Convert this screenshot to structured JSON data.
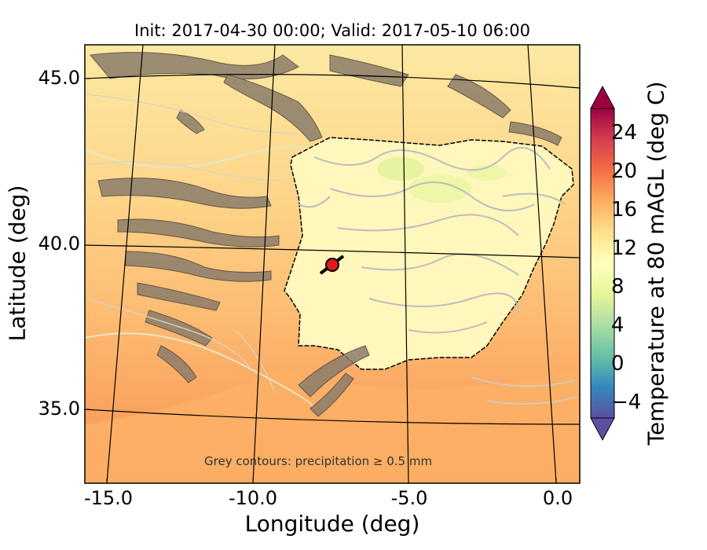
{
  "title": "Init: 2017-04-30 00:00; Valid: 2017-05-10 06:00",
  "xlabel": "Longitude (deg)",
  "ylabel": "Latitude (deg)",
  "x_ticks": [
    "-15.0",
    "-10.0",
    "-5.0",
    "0.0"
  ],
  "y_ticks": [
    "45.0",
    "40.0",
    "35.0"
  ],
  "colorbar": {
    "label": "Temperature at 80 mAGL (deg C)",
    "ticks": [
      "24",
      "20",
      "16",
      "12",
      "8",
      "4",
      "0",
      "−4"
    ],
    "range": [
      -7,
      28
    ]
  },
  "annotation": "Grey contours: precipitation ≥ 0.5 mm",
  "marker": {
    "name": "red-circle-location-marker",
    "lon": -7.6,
    "lat": 39.3,
    "color": "#e0191b"
  },
  "colors": {
    "ocean_light": "#fde9a2",
    "ocean_mid": "#fdc77a",
    "ocean_warm": "#f99a5a",
    "land": "#fef3b3",
    "mountains": "#8b7d6b",
    "precip_contour": "#bdbdbd"
  },
  "chart_data": {
    "type": "heatmap",
    "title": "Init: 2017-04-30 00:00; Valid: 2017-05-10 06:00",
    "xlabel": "Longitude (deg)",
    "ylabel": "Latitude (deg)",
    "xlim": [
      -16,
      0.3
    ],
    "ylim": [
      32.5,
      46
    ],
    "colorbar_range": [
      -7,
      28
    ],
    "colorbar_label": "Temperature at 80 mAGL (deg C)"
  }
}
